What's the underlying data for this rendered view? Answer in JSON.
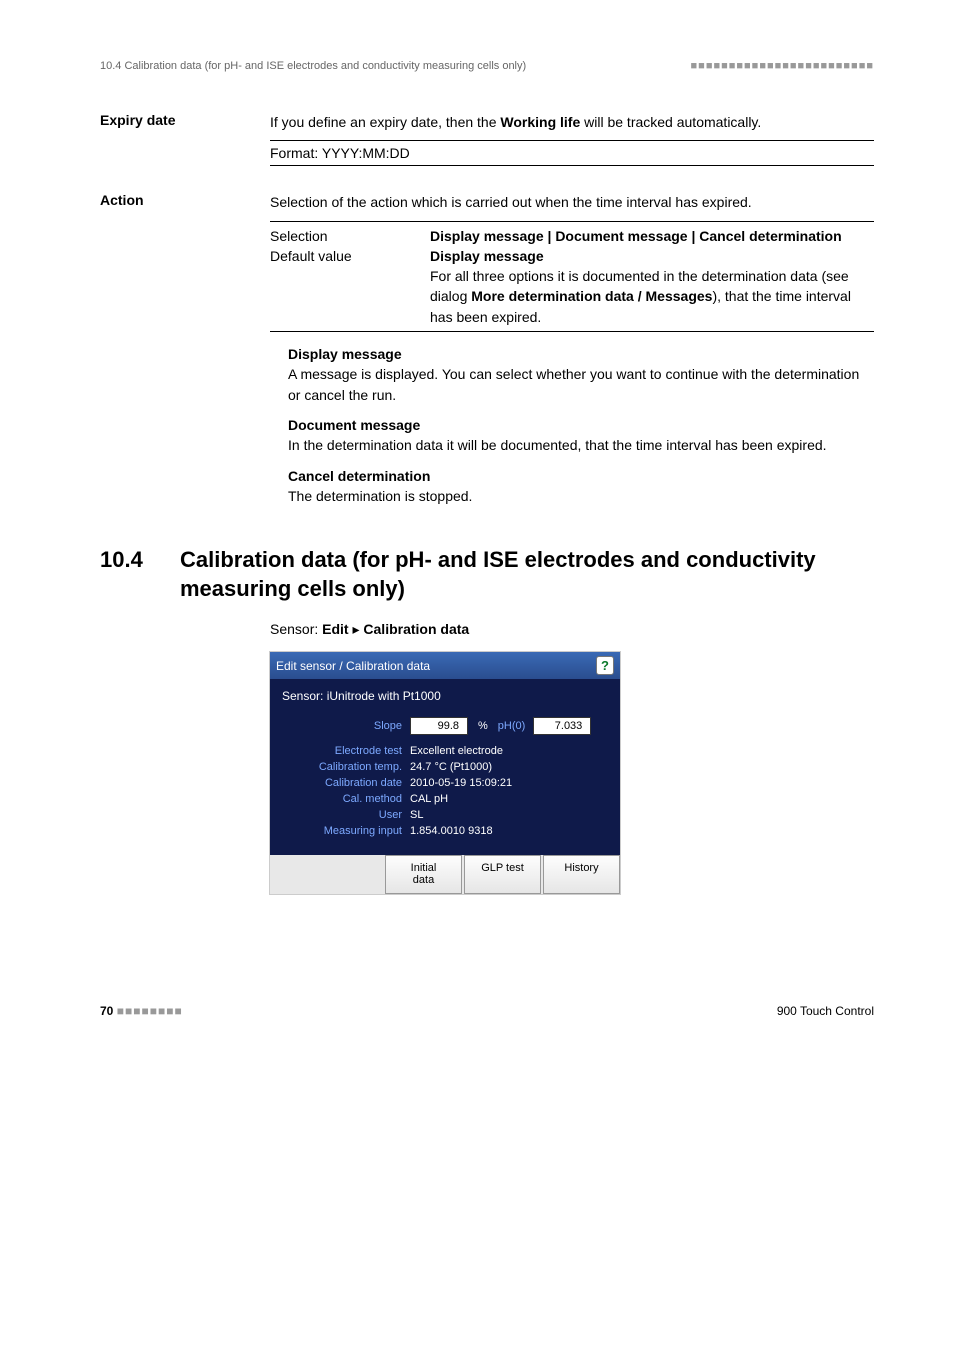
{
  "header": {
    "running_head": "10.4 Calibration data (for pH- and ISE electrodes and conductivity measuring cells only)",
    "squares": "■■■■■■■■■■■■■■■■■■■■■■■■"
  },
  "expiry": {
    "label": "Expiry date",
    "desc_pre": "If you define an expiry date, then the ",
    "desc_bold": "Working life",
    "desc_post": " will be tracked automatically.",
    "format": "Format: YYYY:MM:DD"
  },
  "action": {
    "label": "Action",
    "desc": "Selection of the action which is carried out when the time interval has expired.",
    "sel_label": "Selection",
    "sel_val": "Display message | Document message | Cancel determination",
    "def_label": "Default value",
    "def_val": "Display message",
    "def_note_pre": "For all three options it is documented in the determination data (see dialog ",
    "def_note_bold": "More determination data / Messages",
    "def_note_post": "), that the time interval has been expired.",
    "opt1_title": "Display message",
    "opt1_body": "A message is displayed. You can select whether you want to continue with the determination or cancel the run.",
    "opt2_title": "Document message",
    "opt2_body": "In the determination data it will be documented, that the time interval has been expired.",
    "opt3_title": "Cancel determination",
    "opt3_body": "The determination is stopped."
  },
  "section": {
    "num": "10.4",
    "title": "Calibration data (for pH- and ISE electrodes and conductivity measuring cells only)"
  },
  "breadcrumb": {
    "pre": "Sensor: ",
    "edit": "Edit",
    "sep": " ▸ ",
    "cal": "Calibration data"
  },
  "shot": {
    "title": "Edit sensor / Calibration data",
    "help": "?",
    "sub": "Sensor:  iUnitrode with Pt1000",
    "slope_k": "Slope",
    "slope_v": "99.8",
    "slope_unit": "%",
    "ph_k": "pH(0)",
    "ph_v": "7.033",
    "rows": [
      {
        "k": "Electrode test",
        "v": "Excellent electrode"
      },
      {
        "k": "Calibration temp.",
        "v": "24.7 °C   (Pt1000)"
      },
      {
        "k": "Calibration date",
        "v": "2010-05-19 15:09:21"
      },
      {
        "k": "Cal. method",
        "v": "CAL pH"
      },
      {
        "k": "User",
        "v": "SL"
      },
      {
        "k": "Measuring input",
        "v": "1.854.0010 9318"
      }
    ],
    "btn1": "Initial\ndata",
    "btn2": "GLP test",
    "btn3": "History"
  },
  "footer": {
    "page": "70",
    "squares": "■■■■■■■■",
    "product": "900 Touch Control"
  }
}
